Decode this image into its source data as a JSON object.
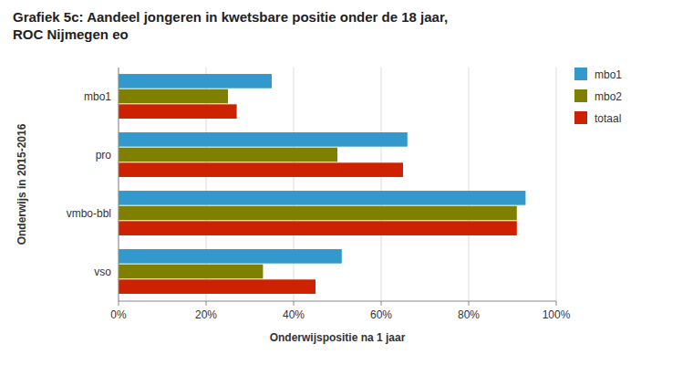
{
  "chart_data": {
    "type": "bar",
    "orientation": "horizontal",
    "title": "Grafiek 5c: Aandeel jongeren in kwetsbare positie onder de 18 jaar,\nROC Nijmegen eo",
    "xlabel": "Onderwijspositie na 1 jaar",
    "ylabel": "Onderwijs in 2015-2016",
    "categories": [
      "mbo1",
      "pro",
      "vmbo-bbl",
      "vso"
    ],
    "series": [
      {
        "name": "mbo1",
        "color": "#3399cc",
        "values": [
          35,
          66,
          93,
          51
        ]
      },
      {
        "name": "mbo2",
        "color": "#808000",
        "values": [
          25,
          50,
          91,
          33
        ]
      },
      {
        "name": "totaal",
        "color": "#cc2200",
        "values": [
          27,
          65,
          91,
          45
        ]
      }
    ],
    "xlim": [
      0,
      100
    ],
    "xticks": [
      {
        "value": 0,
        "label": "0%"
      },
      {
        "value": 20,
        "label": "20%"
      },
      {
        "value": 40,
        "label": "40%"
      },
      {
        "value": 60,
        "label": "60%"
      },
      {
        "value": 80,
        "label": "80%"
      },
      {
        "value": 100,
        "label": "100%"
      }
    ],
    "grid": true,
    "legend": "right"
  }
}
